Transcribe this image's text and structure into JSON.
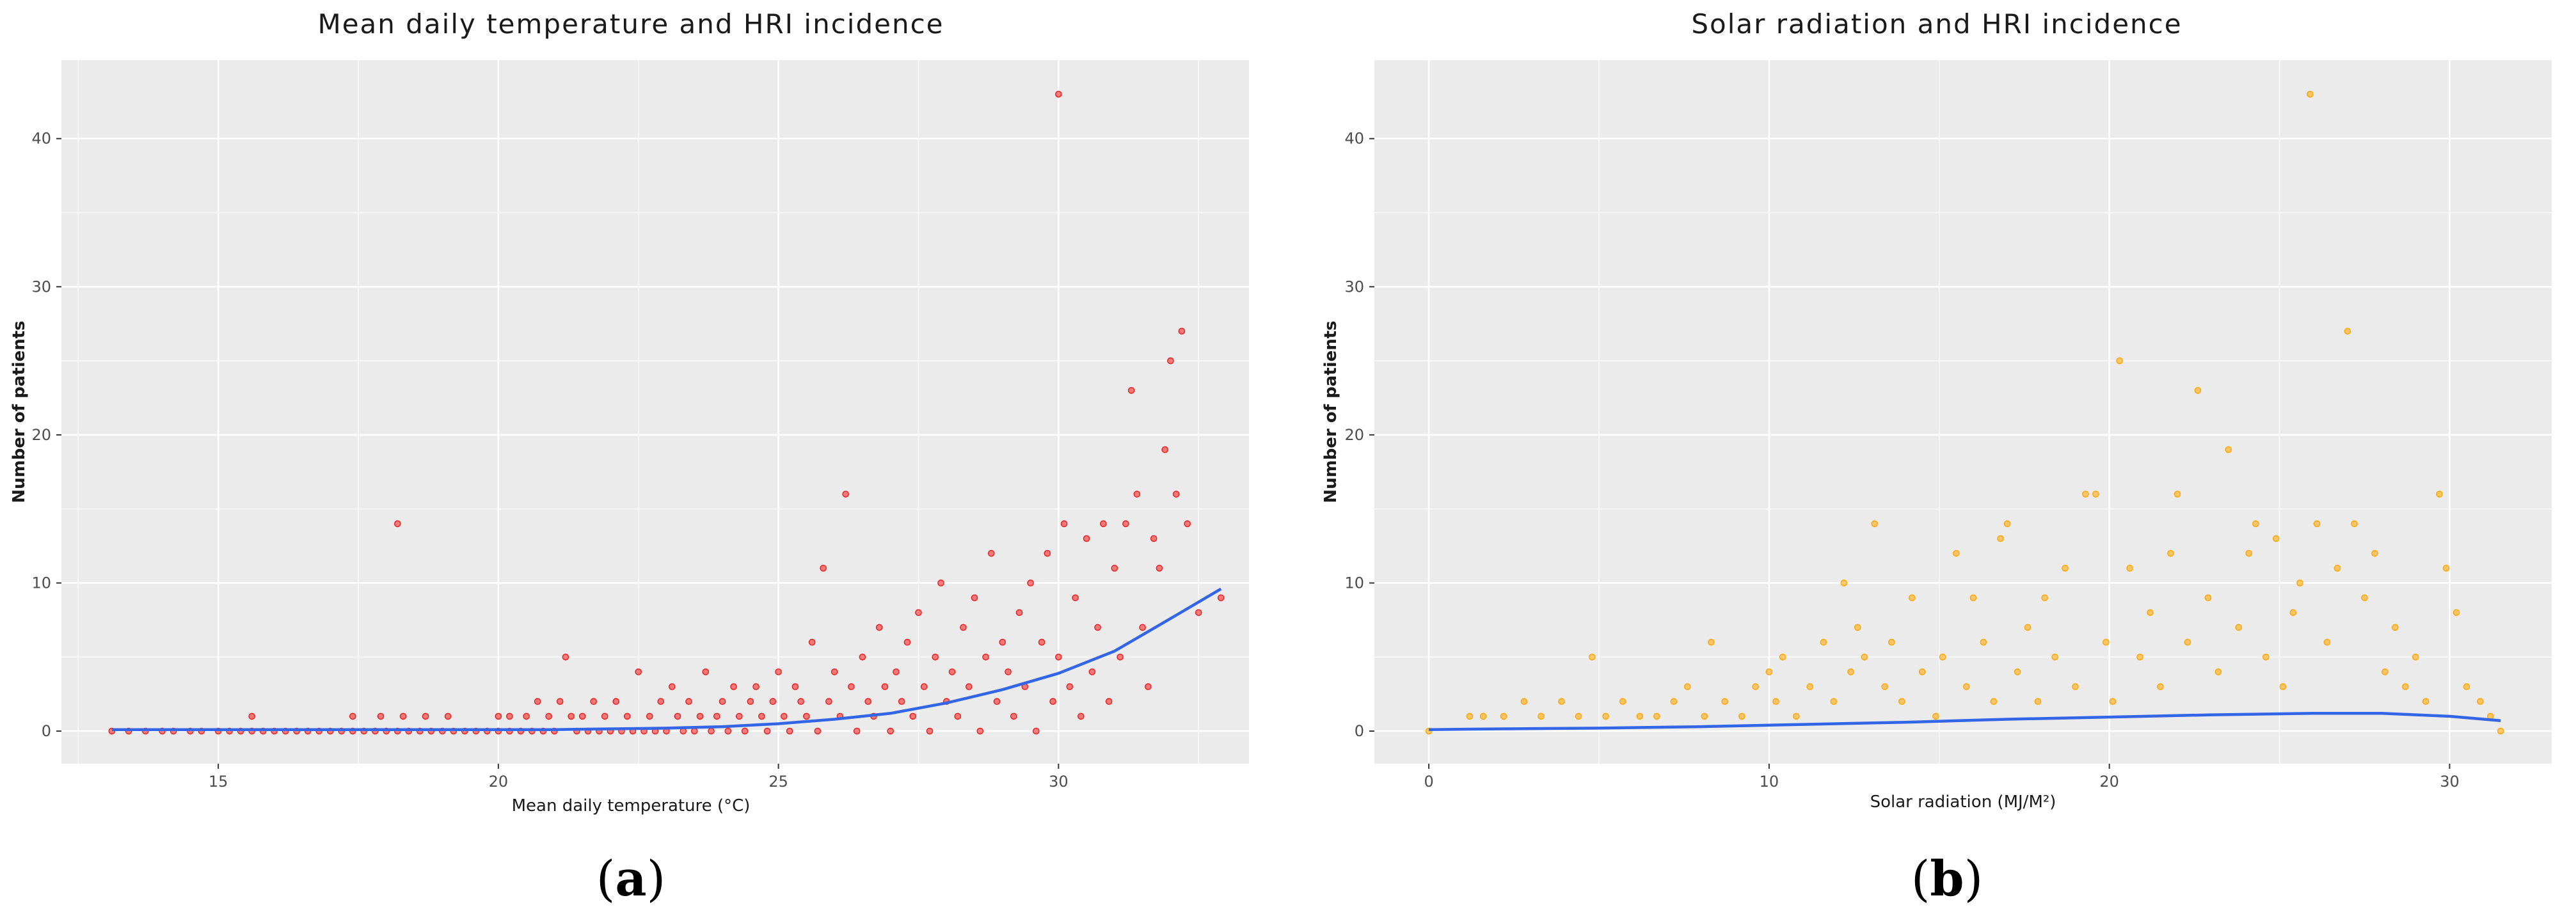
{
  "colors": {
    "panel_bg": "#ebebeb",
    "grid": "#ffffff",
    "trend": "#3366e6",
    "series_a": "#ee1c1c",
    "series_b": "#ffa500"
  },
  "captions": {
    "a_open": "(",
    "a_letter": "a",
    "a_close": ")",
    "b_open": "(",
    "b_letter": "b",
    "b_close": ")"
  },
  "chart_data": [
    {
      "type": "scatter",
      "title": "Mean daily temperature and HRI incidence",
      "xlabel": "Mean daily temperature (°C)",
      "ylabel": "Number of patients",
      "xlim": [
        12.2,
        33.4
      ],
      "ylim": [
        -2.2,
        45.3
      ],
      "xticks": [
        15,
        20,
        25,
        30
      ],
      "yticks": [
        0,
        10,
        20,
        30,
        40
      ],
      "point_color": "#ee1c1c",
      "trend_color": "#3366e6",
      "points": [
        [
          13.1,
          0
        ],
        [
          13.4,
          0
        ],
        [
          13.7,
          0
        ],
        [
          14.0,
          0
        ],
        [
          14.2,
          0
        ],
        [
          14.5,
          0
        ],
        [
          14.7,
          0
        ],
        [
          15.0,
          0
        ],
        [
          15.2,
          0
        ],
        [
          15.4,
          0
        ],
        [
          15.6,
          0
        ],
        [
          15.6,
          1
        ],
        [
          15.8,
          0
        ],
        [
          16.0,
          0
        ],
        [
          16.2,
          0
        ],
        [
          16.4,
          0
        ],
        [
          16.6,
          0
        ],
        [
          16.8,
          0
        ],
        [
          17.0,
          0
        ],
        [
          17.2,
          0
        ],
        [
          17.4,
          0
        ],
        [
          17.4,
          1
        ],
        [
          17.6,
          0
        ],
        [
          17.8,
          0
        ],
        [
          17.9,
          1
        ],
        [
          18.0,
          0
        ],
        [
          18.2,
          0
        ],
        [
          18.2,
          14
        ],
        [
          18.3,
          1
        ],
        [
          18.4,
          0
        ],
        [
          18.6,
          0
        ],
        [
          18.7,
          1
        ],
        [
          18.8,
          0
        ],
        [
          19.0,
          0
        ],
        [
          19.1,
          1
        ],
        [
          19.2,
          0
        ],
        [
          19.4,
          0
        ],
        [
          19.6,
          0
        ],
        [
          19.8,
          0
        ],
        [
          20.0,
          0
        ],
        [
          20.0,
          1
        ],
        [
          20.2,
          0
        ],
        [
          20.2,
          1
        ],
        [
          20.4,
          0
        ],
        [
          20.5,
          1
        ],
        [
          20.6,
          0
        ],
        [
          20.7,
          2
        ],
        [
          20.8,
          0
        ],
        [
          20.9,
          1
        ],
        [
          21.0,
          0
        ],
        [
          21.1,
          2
        ],
        [
          21.2,
          5
        ],
        [
          21.3,
          1
        ],
        [
          21.4,
          0
        ],
        [
          21.5,
          1
        ],
        [
          21.6,
          0
        ],
        [
          21.7,
          2
        ],
        [
          21.8,
          0
        ],
        [
          21.9,
          1
        ],
        [
          22.0,
          0
        ],
        [
          22.1,
          2
        ],
        [
          22.2,
          0
        ],
        [
          22.3,
          1
        ],
        [
          22.4,
          0
        ],
        [
          22.5,
          4
        ],
        [
          22.6,
          0
        ],
        [
          22.7,
          1
        ],
        [
          22.8,
          0
        ],
        [
          22.9,
          2
        ],
        [
          23.0,
          0
        ],
        [
          23.1,
          3
        ],
        [
          23.2,
          1
        ],
        [
          23.3,
          0
        ],
        [
          23.4,
          2
        ],
        [
          23.5,
          0
        ],
        [
          23.6,
          1
        ],
        [
          23.7,
          4
        ],
        [
          23.8,
          0
        ],
        [
          23.9,
          1
        ],
        [
          24.0,
          2
        ],
        [
          24.1,
          0
        ],
        [
          24.2,
          3
        ],
        [
          24.3,
          1
        ],
        [
          24.4,
          0
        ],
        [
          24.5,
          2
        ],
        [
          24.6,
          3
        ],
        [
          24.7,
          1
        ],
        [
          24.8,
          0
        ],
        [
          24.9,
          2
        ],
        [
          25.0,
          4
        ],
        [
          25.1,
          1
        ],
        [
          25.2,
          0
        ],
        [
          25.3,
          3
        ],
        [
          25.4,
          2
        ],
        [
          25.5,
          1
        ],
        [
          25.6,
          6
        ],
        [
          25.7,
          0
        ],
        [
          25.8,
          11
        ],
        [
          25.9,
          2
        ],
        [
          26.0,
          4
        ],
        [
          26.1,
          1
        ],
        [
          26.2,
          16
        ],
        [
          26.3,
          3
        ],
        [
          26.4,
          0
        ],
        [
          26.5,
          5
        ],
        [
          26.6,
          2
        ],
        [
          26.7,
          1
        ],
        [
          26.8,
          7
        ],
        [
          26.9,
          3
        ],
        [
          27.0,
          0
        ],
        [
          27.1,
          4
        ],
        [
          27.2,
          2
        ],
        [
          27.3,
          6
        ],
        [
          27.4,
          1
        ],
        [
          27.5,
          8
        ],
        [
          27.6,
          3
        ],
        [
          27.7,
          0
        ],
        [
          27.8,
          5
        ],
        [
          27.9,
          10
        ],
        [
          28.0,
          2
        ],
        [
          28.1,
          4
        ],
        [
          28.2,
          1
        ],
        [
          28.3,
          7
        ],
        [
          28.4,
          3
        ],
        [
          28.5,
          9
        ],
        [
          28.6,
          0
        ],
        [
          28.7,
          5
        ],
        [
          28.8,
          12
        ],
        [
          28.9,
          2
        ],
        [
          29.0,
          6
        ],
        [
          29.1,
          4
        ],
        [
          29.2,
          1
        ],
        [
          29.3,
          8
        ],
        [
          29.4,
          3
        ],
        [
          29.5,
          10
        ],
        [
          29.6,
          0
        ],
        [
          29.7,
          6
        ],
        [
          29.8,
          12
        ],
        [
          29.9,
          2
        ],
        [
          30.0,
          43
        ],
        [
          30.0,
          5
        ],
        [
          30.1,
          14
        ],
        [
          30.2,
          3
        ],
        [
          30.3,
          9
        ],
        [
          30.4,
          1
        ],
        [
          30.5,
          13
        ],
        [
          30.6,
          4
        ],
        [
          30.7,
          7
        ],
        [
          30.8,
          14
        ],
        [
          30.9,
          2
        ],
        [
          31.0,
          11
        ],
        [
          31.1,
          5
        ],
        [
          31.2,
          14
        ],
        [
          31.3,
          23
        ],
        [
          31.4,
          16
        ],
        [
          31.5,
          7
        ],
        [
          31.6,
          3
        ],
        [
          31.7,
          13
        ],
        [
          31.8,
          11
        ],
        [
          31.9,
          19
        ],
        [
          32.0,
          25
        ],
        [
          32.1,
          16
        ],
        [
          32.2,
          27
        ],
        [
          32.3,
          14
        ],
        [
          32.5,
          8
        ],
        [
          32.9,
          9
        ]
      ],
      "trend": [
        [
          13.1,
          0.1
        ],
        [
          15,
          0.1
        ],
        [
          17,
          0.1
        ],
        [
          19,
          0.1
        ],
        [
          21,
          0.1
        ],
        [
          23,
          0.2
        ],
        [
          24,
          0.3
        ],
        [
          25,
          0.5
        ],
        [
          26,
          0.8
        ],
        [
          27,
          1.2
        ],
        [
          28,
          1.9
        ],
        [
          29,
          2.8
        ],
        [
          30,
          3.9
        ],
        [
          31,
          5.4
        ],
        [
          32,
          7.6
        ],
        [
          32.9,
          9.6
        ]
      ]
    },
    {
      "type": "scatter",
      "title": "Solar radiation and HRI incidence",
      "xlabel": "Solar radiation (MJ/M²)",
      "ylabel": "Number of patients",
      "xlim": [
        -1.6,
        33.0
      ],
      "ylim": [
        -2.2,
        45.3
      ],
      "xticks": [
        0,
        10,
        20,
        30
      ],
      "yticks": [
        0,
        10,
        20,
        30,
        40
      ],
      "point_color": "#ffa500",
      "trend_color": "#3366e6",
      "points": [
        [
          0,
          0
        ],
        [
          1.2,
          1
        ],
        [
          1.6,
          1
        ],
        [
          2.2,
          1
        ],
        [
          2.8,
          2
        ],
        [
          3.3,
          1
        ],
        [
          3.9,
          2
        ],
        [
          4.4,
          1
        ],
        [
          4.8,
          5
        ],
        [
          5.2,
          1
        ],
        [
          5.7,
          2
        ],
        [
          6.2,
          1
        ],
        [
          6.7,
          1
        ],
        [
          7.2,
          2
        ],
        [
          7.6,
          3
        ],
        [
          8.1,
          1
        ],
        [
          8.3,
          6
        ],
        [
          8.7,
          2
        ],
        [
          9.2,
          1
        ],
        [
          9.6,
          3
        ],
        [
          10.0,
          4
        ],
        [
          10.2,
          2
        ],
        [
          10.4,
          5
        ],
        [
          10.8,
          1
        ],
        [
          11.2,
          3
        ],
        [
          11.6,
          6
        ],
        [
          11.9,
          2
        ],
        [
          12.2,
          10
        ],
        [
          12.4,
          4
        ],
        [
          12.6,
          7
        ],
        [
          12.8,
          5
        ],
        [
          13.1,
          14
        ],
        [
          13.4,
          3
        ],
        [
          13.6,
          6
        ],
        [
          13.9,
          2
        ],
        [
          14.2,
          9
        ],
        [
          14.5,
          4
        ],
        [
          14.9,
          1
        ],
        [
          15.1,
          5
        ],
        [
          15.5,
          12
        ],
        [
          15.8,
          3
        ],
        [
          16.0,
          9
        ],
        [
          16.3,
          6
        ],
        [
          16.6,
          2
        ],
        [
          16.8,
          13
        ],
        [
          17.0,
          14
        ],
        [
          17.3,
          4
        ],
        [
          17.6,
          7
        ],
        [
          17.9,
          2
        ],
        [
          18.1,
          9
        ],
        [
          18.4,
          5
        ],
        [
          18.7,
          11
        ],
        [
          19.0,
          3
        ],
        [
          19.3,
          16
        ],
        [
          19.6,
          16
        ],
        [
          19.9,
          6
        ],
        [
          20.1,
          2
        ],
        [
          20.3,
          25
        ],
        [
          20.6,
          11
        ],
        [
          20.9,
          5
        ],
        [
          21.2,
          8
        ],
        [
          21.5,
          3
        ],
        [
          21.8,
          12
        ],
        [
          22.0,
          16
        ],
        [
          22.3,
          6
        ],
        [
          22.6,
          23
        ],
        [
          22.9,
          9
        ],
        [
          23.2,
          4
        ],
        [
          23.5,
          19
        ],
        [
          23.8,
          7
        ],
        [
          24.1,
          12
        ],
        [
          24.3,
          14
        ],
        [
          24.6,
          5
        ],
        [
          24.9,
          13
        ],
        [
          25.1,
          3
        ],
        [
          25.4,
          8
        ],
        [
          25.6,
          10
        ],
        [
          25.9,
          43
        ],
        [
          26.1,
          14
        ],
        [
          26.4,
          6
        ],
        [
          26.7,
          11
        ],
        [
          27.0,
          27
        ],
        [
          27.2,
          14
        ],
        [
          27.5,
          9
        ],
        [
          27.8,
          12
        ],
        [
          28.1,
          4
        ],
        [
          28.4,
          7
        ],
        [
          28.7,
          3
        ],
        [
          29.0,
          5
        ],
        [
          29.3,
          2
        ],
        [
          29.7,
          16
        ],
        [
          29.9,
          11
        ],
        [
          30.2,
          8
        ],
        [
          30.5,
          3
        ],
        [
          30.9,
          2
        ],
        [
          31.2,
          1
        ],
        [
          31.5,
          0
        ]
      ],
      "trend": [
        [
          0,
          0.1
        ],
        [
          2,
          0.15
        ],
        [
          5,
          0.2
        ],
        [
          8,
          0.3
        ],
        [
          11,
          0.45
        ],
        [
          14,
          0.6
        ],
        [
          17,
          0.8
        ],
        [
          20,
          0.95
        ],
        [
          23,
          1.1
        ],
        [
          26,
          1.2
        ],
        [
          28,
          1.2
        ],
        [
          30,
          1.0
        ],
        [
          31.5,
          0.7
        ]
      ]
    }
  ]
}
